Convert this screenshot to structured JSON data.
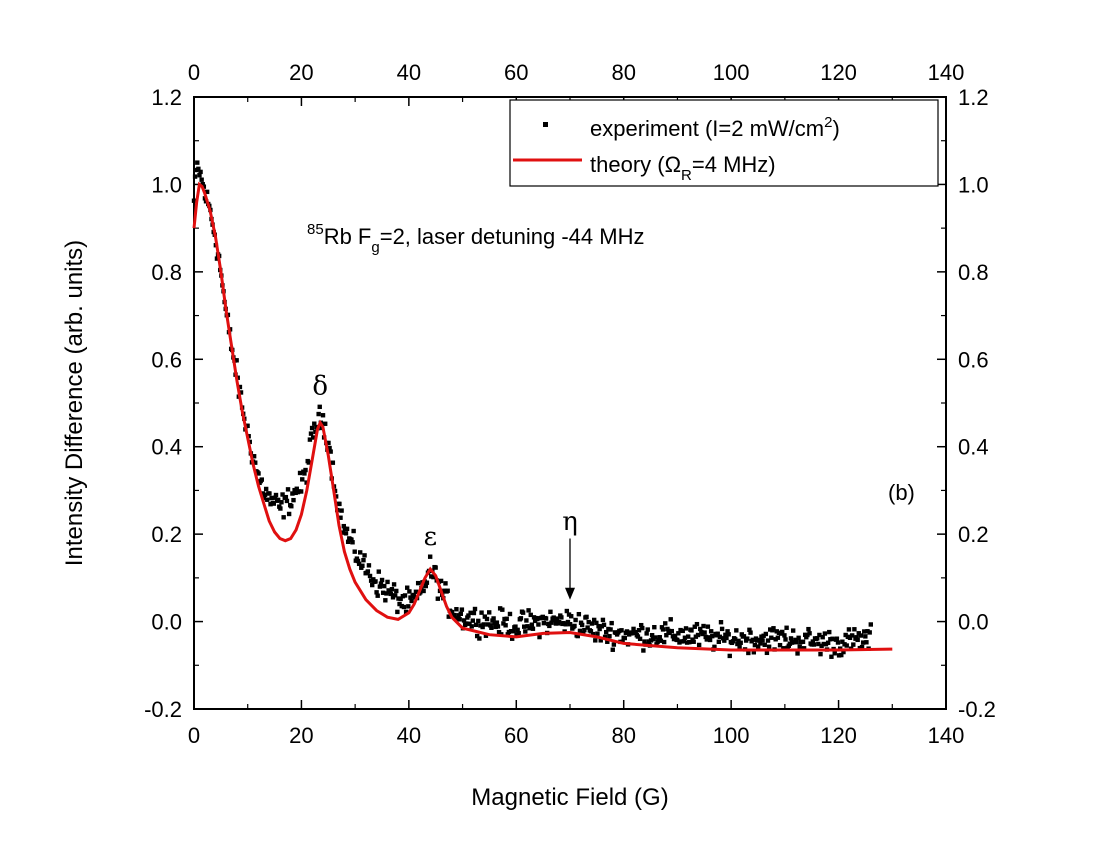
{
  "chart_data": {
    "type": "scatter",
    "xlabel": "Magnetic Field (G)",
    "ylabel": "Intensity Difference (arb. units)",
    "xlim": [
      0,
      140
    ],
    "ylim": [
      -0.2,
      1.2
    ],
    "xticks": [
      "0",
      "20",
      "40",
      "60",
      "80",
      "100",
      "120",
      "140"
    ],
    "yticks_left": [
      "-0.2",
      "0.0",
      "0.2",
      "0.4",
      "0.6",
      "0.8",
      "1.0",
      "1.2"
    ],
    "yticks_right": [
      "-0.2",
      "0.0",
      "0.2",
      "0.4",
      "0.6",
      "0.8",
      "1.0",
      "1.2"
    ],
    "grid": false,
    "legend_position": "top-right",
    "legend": {
      "experiment": {
        "prefix": "experiment (I=2 mW/cm",
        "sup": "2",
        "suffix": ")"
      },
      "theory": {
        "prefix": "theory (",
        "omega": "Ω",
        "sub": "R",
        "suffix": "=4 MHz)"
      }
    },
    "annotation": {
      "sup": "85",
      "line_a": "Rb F",
      "sub": "g",
      "line_b": "=2, laser detuning -44 MHz"
    },
    "panel_label": "(b)",
    "peak_labels": [
      {
        "text": "δ",
        "x": 23.5,
        "y": 0.52
      },
      {
        "text": "ε",
        "x": 44,
        "y": 0.175
      },
      {
        "text": "η",
        "x": 70,
        "y": 0.21
      }
    ],
    "arrow": {
      "x": 70,
      "y_start": 0.19,
      "y_end": 0.05
    },
    "series": [
      {
        "name": "experiment",
        "style": "markers",
        "color": "#000000",
        "x_start": 0,
        "x_end": 126,
        "n": 620,
        "anchors": [
          [
            0,
            0.96
          ],
          [
            0.5,
            1.04
          ],
          [
            1,
            1.03
          ],
          [
            2,
            0.98
          ],
          [
            3,
            0.94
          ],
          [
            4,
            0.88
          ],
          [
            5,
            0.8
          ],
          [
            6,
            0.7
          ],
          [
            7,
            0.63
          ],
          [
            8,
            0.56
          ],
          [
            9,
            0.49
          ],
          [
            10,
            0.43
          ],
          [
            11,
            0.38
          ],
          [
            12,
            0.33
          ],
          [
            13,
            0.3
          ],
          [
            14,
            0.28
          ],
          [
            15,
            0.27
          ],
          [
            16,
            0.26
          ],
          [
            17,
            0.27
          ],
          [
            18,
            0.28
          ],
          [
            19,
            0.3
          ],
          [
            20,
            0.31
          ],
          [
            21,
            0.35
          ],
          [
            22,
            0.42
          ],
          [
            23,
            0.46
          ],
          [
            24,
            0.46
          ],
          [
            25,
            0.42
          ],
          [
            26,
            0.33
          ],
          [
            27,
            0.26
          ],
          [
            28,
            0.21
          ],
          [
            30,
            0.16
          ],
          [
            32,
            0.12
          ],
          [
            34,
            0.09
          ],
          [
            36,
            0.07
          ],
          [
            38,
            0.05
          ],
          [
            40,
            0.04
          ],
          [
            42,
            0.06
          ],
          [
            43,
            0.09
          ],
          [
            44,
            0.12
          ],
          [
            45,
            0.1
          ],
          [
            46,
            0.07
          ],
          [
            48,
            0.03
          ],
          [
            50,
            0.01
          ],
          [
            55,
            0.0
          ],
          [
            60,
            -0.01
          ],
          [
            65,
            0.0
          ],
          [
            70,
            0.0
          ],
          [
            75,
            -0.02
          ],
          [
            80,
            -0.03
          ],
          [
            90,
            -0.03
          ],
          [
            100,
            -0.04
          ],
          [
            110,
            -0.04
          ],
          [
            120,
            -0.05
          ],
          [
            126,
            -0.04
          ]
        ],
        "noise": 0.032
      },
      {
        "name": "theory",
        "style": "line",
        "color": "#e01010",
        "points": [
          [
            0,
            0.9
          ],
          [
            0.5,
            0.96
          ],
          [
            1,
            1.0
          ],
          [
            1.5,
            0.995
          ],
          [
            2,
            0.98
          ],
          [
            3,
            0.94
          ],
          [
            4,
            0.88
          ],
          [
            5,
            0.8
          ],
          [
            6,
            0.71
          ],
          [
            7,
            0.63
          ],
          [
            8,
            0.55
          ],
          [
            9,
            0.48
          ],
          [
            10,
            0.42
          ],
          [
            11,
            0.36
          ],
          [
            12,
            0.31
          ],
          [
            13,
            0.27
          ],
          [
            14,
            0.23
          ],
          [
            15,
            0.205
          ],
          [
            16,
            0.19
          ],
          [
            17,
            0.185
          ],
          [
            18,
            0.19
          ],
          [
            19,
            0.21
          ],
          [
            20,
            0.245
          ],
          [
            21,
            0.3
          ],
          [
            22,
            0.37
          ],
          [
            23,
            0.44
          ],
          [
            23.5,
            0.455
          ],
          [
            24,
            0.445
          ],
          [
            25,
            0.38
          ],
          [
            26,
            0.3
          ],
          [
            27,
            0.22
          ],
          [
            28,
            0.16
          ],
          [
            29,
            0.12
          ],
          [
            30,
            0.09
          ],
          [
            32,
            0.05
          ],
          [
            34,
            0.025
          ],
          [
            36,
            0.01
          ],
          [
            38,
            0.005
          ],
          [
            40,
            0.02
          ],
          [
            41,
            0.04
          ],
          [
            42,
            0.07
          ],
          [
            43,
            0.1
          ],
          [
            44,
            0.12
          ],
          [
            45,
            0.105
          ],
          [
            46,
            0.07
          ],
          [
            47,
            0.035
          ],
          [
            48,
            0.01
          ],
          [
            50,
            -0.015
          ],
          [
            55,
            -0.03
          ],
          [
            60,
            -0.035
          ],
          [
            65,
            -0.027
          ],
          [
            70,
            -0.025
          ],
          [
            75,
            -0.035
          ],
          [
            80,
            -0.05
          ],
          [
            90,
            -0.06
          ],
          [
            100,
            -0.065
          ],
          [
            110,
            -0.065
          ],
          [
            120,
            -0.065
          ],
          [
            130,
            -0.063
          ]
        ]
      }
    ]
  }
}
